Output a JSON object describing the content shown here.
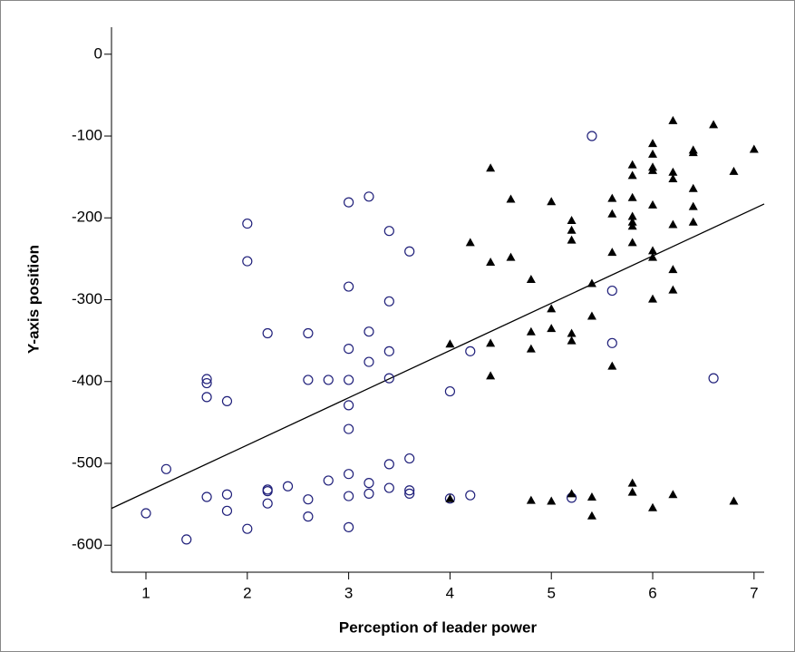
{
  "chart_data": {
    "type": "scatter",
    "x_label": "Perception of leader power",
    "y_label": "Y-axis position",
    "xlim": [
      0.66,
      7.1
    ],
    "ylim": [
      -633,
      33
    ],
    "xticks": [
      1,
      2,
      3,
      4,
      5,
      6,
      7
    ],
    "yticks": [
      0,
      -100,
      -200,
      -300,
      -400,
      -500,
      -600
    ],
    "series": [
      {
        "marker": "circle",
        "color": "#1f1f7a",
        "x": [
          1,
          1.2,
          1.4,
          1.6,
          1.6,
          1.6,
          1.6,
          1.8,
          1.8,
          1.8,
          2,
          2,
          2,
          2.2,
          2.2,
          2.2,
          2.2,
          2.4,
          2.6,
          2.6,
          2.6,
          2.6,
          2.8,
          2.8,
          3,
          3,
          3,
          3,
          3,
          3,
          3,
          3,
          3,
          3.2,
          3.2,
          3.2,
          3.2,
          3.2,
          3.4,
          3.4,
          3.4,
          3.4,
          3.4,
          3.4,
          3.6,
          3.6,
          3.6,
          3.6,
          4,
          4,
          4.2,
          4.2,
          5.2,
          5.4,
          5.6,
          5.6,
          6.6
        ],
        "values": [
          -561,
          -507,
          -593,
          -397,
          -402,
          -419,
          -541,
          -424,
          -538,
          -558,
          -207,
          -253,
          -580,
          -341,
          -532,
          -534,
          -549,
          -528,
          -341,
          -398,
          -544,
          -565,
          -398,
          -521,
          -181,
          -284,
          -360,
          -398,
          -429,
          -458,
          -513,
          -540,
          -578,
          -174,
          -339,
          -376,
          -524,
          -537,
          -216,
          -302,
          -363,
          -396,
          -501,
          -530,
          -241,
          -494,
          -533,
          -537,
          -412,
          -543,
          -363,
          -539,
          -542,
          -100,
          -289,
          -353,
          -396
        ]
      },
      {
        "marker": "triangle",
        "color": "#000000",
        "x": [
          4,
          4,
          4.2,
          4.4,
          4.4,
          4.4,
          4.4,
          4.6,
          4.6,
          4.8,
          4.8,
          4.8,
          4.8,
          5,
          5,
          5,
          5,
          5.2,
          5.2,
          5.2,
          5.2,
          5.2,
          5.2,
          5.4,
          5.4,
          5.4,
          5.4,
          5.6,
          5.6,
          5.6,
          5.6,
          5.8,
          5.8,
          5.8,
          5.8,
          5.8,
          5.8,
          5.8,
          5.8,
          5.8,
          6,
          6,
          6,
          6,
          6,
          6,
          6,
          6,
          6,
          6.2,
          6.2,
          6.2,
          6.2,
          6.2,
          6.2,
          6.2,
          6.4,
          6.4,
          6.4,
          6.4,
          6.4,
          6.6,
          6.8,
          6.8,
          7
        ],
        "values": [
          -354,
          -543,
          -230,
          -139,
          -254,
          -353,
          -393,
          -177,
          -248,
          -275,
          -339,
          -360,
          -545,
          -180,
          -311,
          -335,
          -546,
          -203,
          -215,
          -227,
          -341,
          -350,
          -537,
          -280,
          -320,
          -541,
          -564,
          -176,
          -195,
          -242,
          -381,
          -135,
          -148,
          -175,
          -198,
          -205,
          -210,
          -230,
          -524,
          -535,
          -109,
          -122,
          -138,
          -142,
          -184,
          -240,
          -248,
          -299,
          -554,
          -81,
          -144,
          -152,
          -208,
          -263,
          -288,
          -538,
          -117,
          -120,
          -164,
          -186,
          -205,
          -86,
          -143,
          -546,
          -116
        ]
      }
    ],
    "fit_line": {
      "color": "#000000",
      "x": [
        0.66,
        7.1
      ],
      "values": [
        -555,
        -183
      ]
    }
  }
}
